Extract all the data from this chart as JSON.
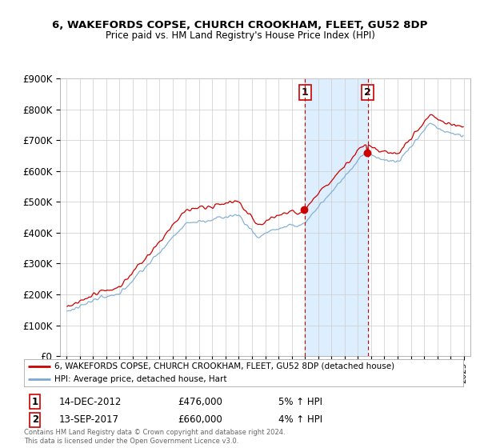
{
  "title1": "6, WAKEFORDS COPSE, CHURCH CROOKHAM, FLEET, GU52 8DP",
  "title2": "Price paid vs. HM Land Registry's House Price Index (HPI)",
  "legend_line1": "6, WAKEFORDS COPSE, CHURCH CROOKHAM, FLEET, GU52 8DP (detached house)",
  "legend_line2": "HPI: Average price, detached house, Hart",
  "sale1_date": "14-DEC-2012",
  "sale1_price": "£476,000",
  "sale1_hpi": "5% ↑ HPI",
  "sale2_date": "13-SEP-2017",
  "sale2_price": "£660,000",
  "sale2_hpi": "4% ↑ HPI",
  "footer": "Contains HM Land Registry data © Crown copyright and database right 2024.\nThis data is licensed under the Open Government Licence v3.0.",
  "property_color": "#cc0000",
  "hpi_color": "#7aaad0",
  "sale1_x": 2013.0,
  "sale2_x": 2017.75,
  "ylim_min": 0,
  "ylim_max": 900000,
  "xlim_min": 1994.5,
  "xlim_max": 2025.5,
  "background_color": "#ffffff",
  "grid_color": "#cccccc",
  "shade_color": "#ddeeff"
}
